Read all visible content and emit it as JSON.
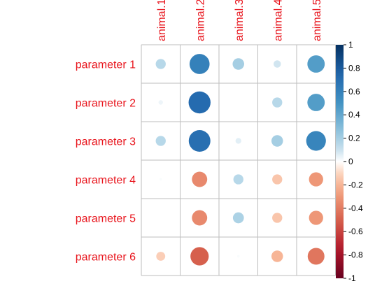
{
  "chart_data": {
    "type": "heatmap",
    "subtype": "correlation-circle-matrix",
    "rows": [
      "parameter 1",
      "parameter 2",
      "parameter 3",
      "parameter 4",
      "parameter 5",
      "parameter 6"
    ],
    "columns": [
      "animal.1",
      "animal.2",
      "animal.3",
      "animal.4",
      "animal.5"
    ],
    "values": [
      [
        0.15,
        0.6,
        0.2,
        0.08,
        0.45
      ],
      [
        0.03,
        0.72,
        0.0,
        0.15,
        0.45
      ],
      [
        0.15,
        0.7,
        0.05,
        0.2,
        0.58
      ],
      [
        0.01,
        -0.35,
        0.15,
        -0.15,
        -0.3
      ],
      [
        0.0,
        -0.35,
        0.18,
        -0.15,
        -0.3
      ],
      [
        -0.12,
        -0.5,
        0.01,
        -0.2,
        -0.42
      ]
    ],
    "legend": {
      "ticks": [
        "1",
        "0.8",
        "0.6",
        "0.4",
        "0.2",
        "0",
        "-0.2",
        "-0.4",
        "-0.6",
        "-0.8",
        "-1"
      ],
      "range": [
        -1,
        1
      ],
      "placement": "right"
    },
    "colors": {
      "label_color": "#e8141c",
      "grid_color": "#bebebe",
      "scale_low": "#67001f",
      "scale_mid": "#ffffff",
      "scale_high": "#053061"
    },
    "grid": true
  }
}
